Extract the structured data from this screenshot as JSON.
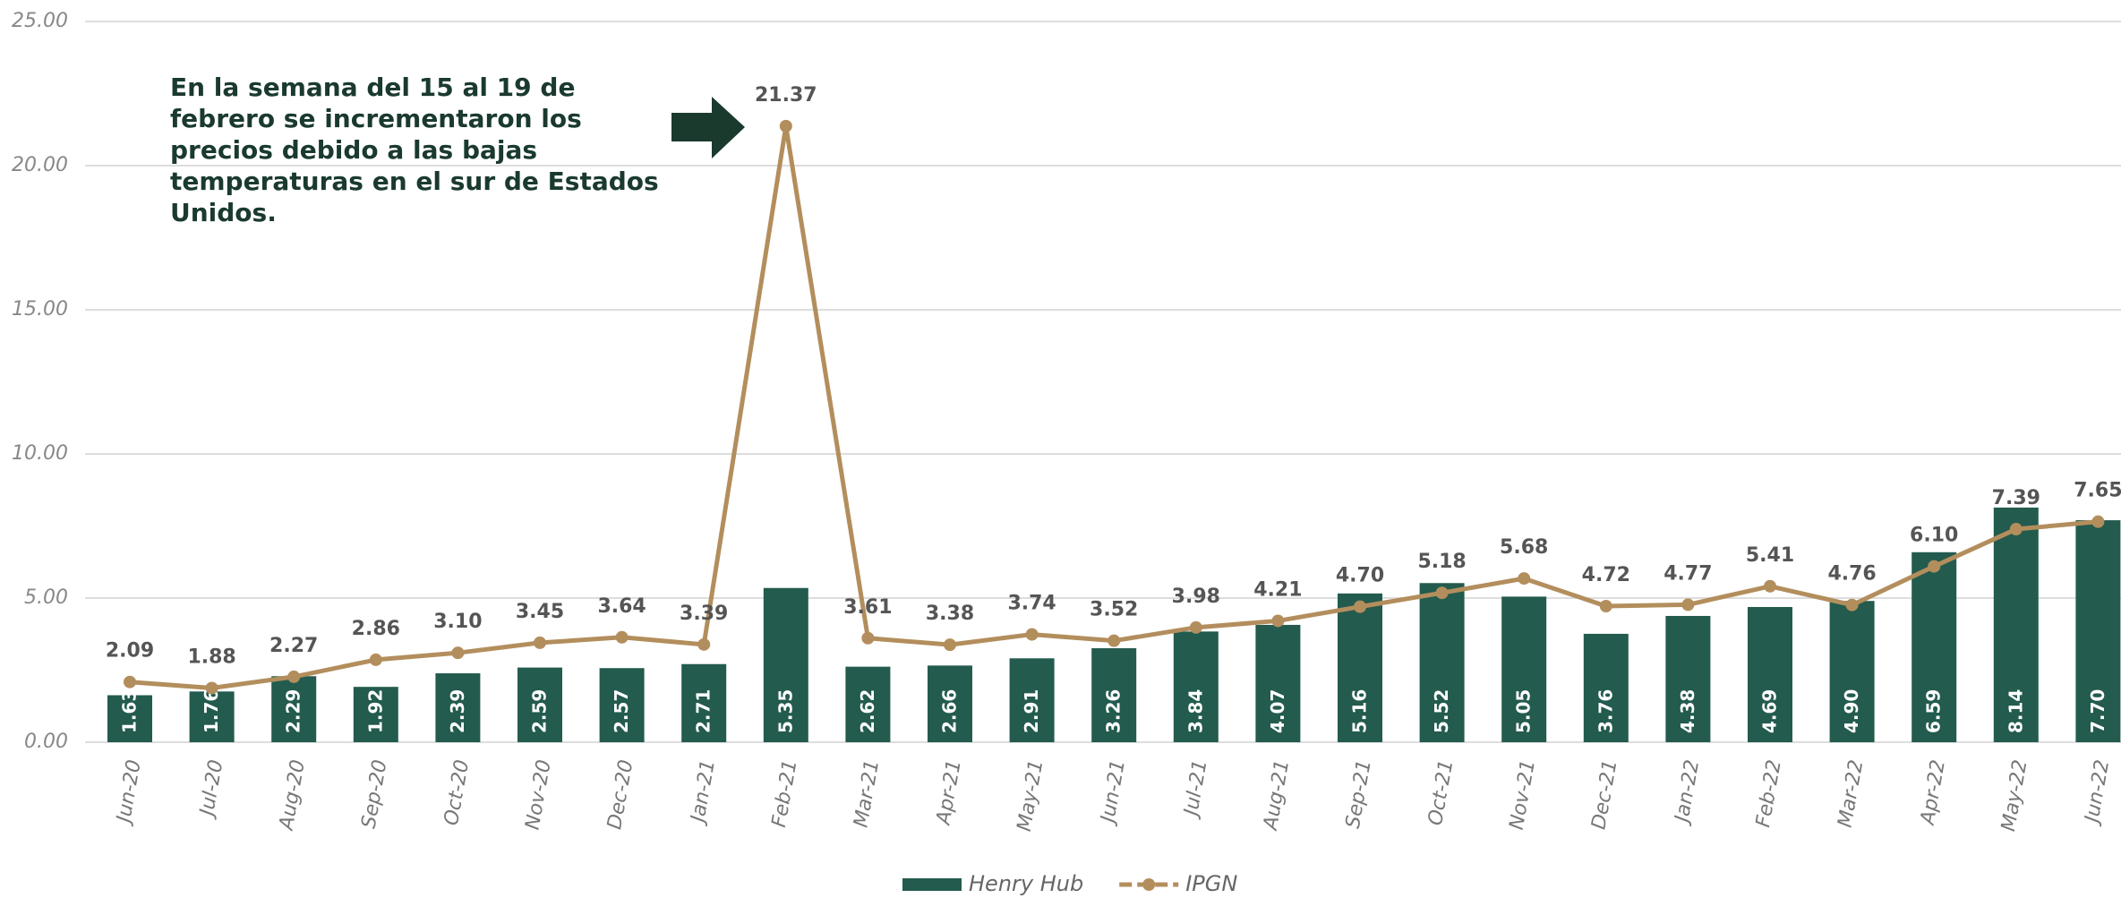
{
  "chart_data": {
    "type": "bar",
    "annotation": "En la semana del 15 al 19 de febrero se incrementaron los precios debido a las bajas temperaturas en el sur de Estados Unidos.",
    "categories": [
      "Jun-20",
      "Jul-20",
      "Aug-20",
      "Sep-20",
      "Oct-20",
      "Nov-20",
      "Dec-20",
      "Jan-21",
      "Feb-21",
      "Mar-21",
      "Apr-21",
      "May-21",
      "Jun-21",
      "Jul-21",
      "Aug-21",
      "Sep-21",
      "Oct-21",
      "Nov-21",
      "Dec-21",
      "Jan-22",
      "Feb-22",
      "Mar-22",
      "Apr-22",
      "May-22",
      "Jun-22"
    ],
    "series": [
      {
        "name": "Henry Hub",
        "type": "bar",
        "color": "#235b4e",
        "values": [
          1.63,
          1.76,
          2.29,
          1.92,
          2.39,
          2.59,
          2.57,
          2.71,
          5.35,
          2.62,
          2.66,
          2.91,
          3.26,
          3.84,
          4.07,
          5.16,
          5.52,
          5.05,
          3.76,
          4.38,
          4.69,
          4.9,
          6.59,
          8.14,
          7.7
        ],
        "value_labels": [
          "1.63",
          "1.76",
          "2.29",
          "1.92",
          "2.39",
          "2.59",
          "2.57",
          "2.71",
          "5.35",
          "2.62",
          "2.66",
          "2.91",
          "3.26",
          "3.84",
          "4.07",
          "5.16",
          "5.52",
          "5.05",
          "3.76",
          "4.38",
          "4.69",
          "4.90",
          "6.59",
          "8.14",
          "7.70"
        ]
      },
      {
        "name": "IPGN",
        "type": "line",
        "color": "#b38e5d",
        "values": [
          2.09,
          1.88,
          2.27,
          2.86,
          3.1,
          3.45,
          3.64,
          3.39,
          21.37,
          3.61,
          3.38,
          3.74,
          3.52,
          3.98,
          4.21,
          4.7,
          5.18,
          5.68,
          4.72,
          4.77,
          5.41,
          4.76,
          6.1,
          7.39,
          7.65
        ],
        "value_labels": [
          "2.09",
          "1.88",
          "2.27",
          "2.86",
          "3.10",
          "3.45",
          "3.64",
          "3.39",
          "21.37",
          "3.61",
          "3.38",
          "3.74",
          "3.52",
          "3.98",
          "4.21",
          "4.70",
          "5.18",
          "5.68",
          "4.72",
          "4.77",
          "5.41",
          "4.76",
          "6.10",
          "7.39",
          "7.65"
        ]
      }
    ],
    "ylim": [
      0,
      25
    ],
    "yticks": [
      {
        "value": 0,
        "label": "0.00"
      },
      {
        "value": 5,
        "label": "5.00"
      },
      {
        "value": 10,
        "label": "10.00"
      },
      {
        "value": 15,
        "label": "15.00"
      },
      {
        "value": 20,
        "label": "20.00"
      },
      {
        "value": 25,
        "label": "25.00"
      }
    ],
    "grid": true,
    "legend": "bottom"
  }
}
